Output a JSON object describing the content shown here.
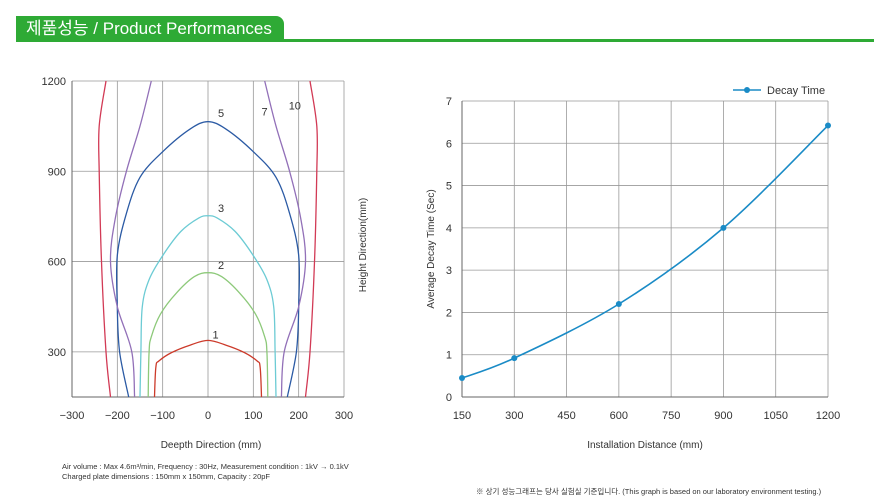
{
  "header": {
    "title": "제품성능 / Product Performances"
  },
  "colors": {
    "brand_green": "#2eaa35",
    "grid": "#999999"
  },
  "chart_data": [
    {
      "type": "line",
      "title": "",
      "xlabel": "Deepth Direction (mm)",
      "ylabel": "Height Direction(mm)",
      "xlim": [
        -300,
        300
      ],
      "ylim": [
        150,
        1200
      ],
      "xticks": [
        -300,
        -200,
        -100,
        0,
        100,
        200,
        300
      ],
      "xtick_labels": [
        "−300",
        "−200",
        "−100",
        "0",
        "100",
        "200",
        "300"
      ],
      "yticks": [
        300,
        600,
        900,
        1200
      ],
      "ytick_labels": [
        "300",
        "600",
        "900",
        "1200"
      ],
      "grid": true,
      "series": [
        {
          "name": "1",
          "color": "#cc3a2a",
          "points": [
            [
              -118,
              150
            ],
            [
              -115,
              250
            ],
            [
              -108,
              270
            ],
            [
              -80,
              298
            ],
            [
              -40,
              322
            ],
            [
              0,
              338
            ],
            [
              40,
              322
            ],
            [
              80,
              298
            ],
            [
              108,
              270
            ],
            [
              115,
              250
            ],
            [
              118,
              150
            ]
          ]
        },
        {
          "name": "2",
          "color": "#8dc97a",
          "points": [
            [
              -132,
              150
            ],
            [
              -130,
              300
            ],
            [
              -125,
              350
            ],
            [
              -105,
              425
            ],
            [
              -70,
              495
            ],
            [
              -30,
              550
            ],
            [
              0,
              563
            ],
            [
              30,
              550
            ],
            [
              70,
              495
            ],
            [
              105,
              425
            ],
            [
              125,
              350
            ],
            [
              130,
              300
            ],
            [
              132,
              150
            ]
          ]
        },
        {
          "name": "3",
          "color": "#6ccbd4",
          "points": [
            [
              -150,
              150
            ],
            [
              -148,
              300
            ],
            [
              -145,
              450
            ],
            [
              -130,
              540
            ],
            [
              -100,
              620
            ],
            [
              -60,
              700
            ],
            [
              -20,
              745
            ],
            [
              0,
              752
            ],
            [
              20,
              745
            ],
            [
              60,
              700
            ],
            [
              100,
              620
            ],
            [
              130,
              540
            ],
            [
              145,
              450
            ],
            [
              148,
              300
            ],
            [
              150,
              150
            ]
          ]
        },
        {
          "name": "5",
          "color": "#2b5aa4",
          "points": [
            [
              -175,
              150
            ],
            [
              -195,
              300
            ],
            [
              -200,
              450
            ],
            [
              -200,
              620
            ],
            [
              -180,
              760
            ],
            [
              -150,
              880
            ],
            [
              -100,
              965
            ],
            [
              -40,
              1040
            ],
            [
              0,
              1065
            ],
            [
              40,
              1040
            ],
            [
              100,
              965
            ],
            [
              150,
              880
            ],
            [
              180,
              760
            ],
            [
              200,
              620
            ],
            [
              200,
              450
            ],
            [
              195,
              300
            ],
            [
              175,
              150
            ]
          ]
        },
        {
          "name": "7",
          "color": "#9270b8",
          "points": [
            [
              -162,
              150
            ],
            [
              -168,
              300
            ],
            [
              -200,
              450
            ],
            [
              -215,
              600
            ],
            [
              -205,
              740
            ],
            [
              -180,
              900
            ],
            [
              -150,
              1050
            ],
            [
              -125,
              1200
            ]
          ]
        },
        {
          "name": "7",
          "color": "#9270b8",
          "points": [
            [
              162,
              150
            ],
            [
              168,
              300
            ],
            [
              200,
              450
            ],
            [
              215,
              600
            ],
            [
              205,
              740
            ],
            [
              180,
              900
            ],
            [
              150,
              1050
            ],
            [
              125,
              1200
            ]
          ]
        },
        {
          "name": "10",
          "color": "#d23a55",
          "points": [
            [
              -215,
              150
            ],
            [
              -225,
              300
            ],
            [
              -235,
              600
            ],
            [
              -240,
              900
            ],
            [
              -240,
              1050
            ],
            [
              -225,
              1200
            ]
          ]
        },
        {
          "name": "10",
          "color": "#d23a55",
          "points": [
            [
              215,
              150
            ],
            [
              225,
              300
            ],
            [
              235,
              600
            ],
            [
              240,
              900
            ],
            [
              240,
              1050
            ],
            [
              225,
              1200
            ]
          ]
        }
      ],
      "curve_labels": [
        {
          "text": "1",
          "x": 10,
          "y": 345
        },
        {
          "text": "2",
          "x": 22,
          "y": 575
        },
        {
          "text": "3",
          "x": 22,
          "y": 765
        },
        {
          "text": "5",
          "x": 22,
          "y": 1080
        },
        {
          "text": "7",
          "x": 118,
          "y": 1085
        },
        {
          "text": "10",
          "x": 178,
          "y": 1105
        }
      ],
      "notes": [
        "Air volume : Max 4.6m³/min, Frequency : 30Hz, Measurement condition : 1kV → 0.1kV",
        "Charged plate dimensions : 150mm x 150mm, Capacity : 20pF"
      ]
    },
    {
      "type": "line",
      "title": "",
      "xlabel": "Installation Distance (mm)",
      "ylabel": "Average Decay Time (Sec)",
      "xlim": [
        150,
        1200
      ],
      "ylim": [
        0,
        7
      ],
      "xticks": [
        150,
        300,
        450,
        600,
        750,
        900,
        1050,
        1200
      ],
      "xtick_labels": [
        "150",
        "300",
        "450",
        "600",
        "750",
        "900",
        "1050",
        "1200"
      ],
      "yticks": [
        0,
        1,
        2,
        3,
        4,
        5,
        6,
        7
      ],
      "ytick_labels": [
        "0",
        "1",
        "2",
        "3",
        "4",
        "5",
        "6",
        "7"
      ],
      "grid": true,
      "legend": "top-right",
      "series": [
        {
          "name": "Decay Time",
          "color": "#1a8bc6",
          "x": [
            150,
            300,
            600,
            900,
            1200
          ],
          "values": [
            0.45,
            0.92,
            2.2,
            4.0,
            6.42
          ]
        }
      ],
      "footnote": "※ 상기 성능그래프는 당사 실험실 기준입니다. (This graph is based on our laboratory environment testing.)"
    }
  ]
}
